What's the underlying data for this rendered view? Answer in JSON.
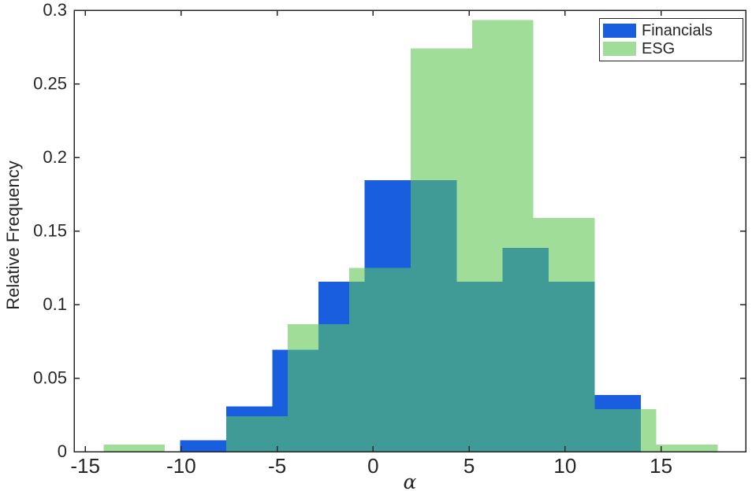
{
  "figure": {
    "background_color": "#ffffff",
    "axis_color": "#262626",
    "text_color": "#262626"
  },
  "legend": {
    "items": [
      {
        "label": "Financials",
        "color": "#1A5EE0"
      },
      {
        "label": "ESG",
        "color": "#A0DD99"
      }
    ]
  },
  "chart_data": {
    "type": "histogram",
    "title": "",
    "xlabel": "α",
    "ylabel": "Relative Frequency",
    "xlim": [
      -15.58,
      19.41
    ],
    "ylim": [
      0,
      0.3
    ],
    "x_tick_values": [
      -15,
      -10,
      -5,
      0,
      5,
      10,
      15
    ],
    "x_tick_labels": [
      "-15",
      "-10",
      "-5",
      "0",
      "5",
      "10",
      "15"
    ],
    "y_tick_values": [
      0,
      0.05,
      0.1,
      0.15,
      0.2,
      0.25,
      0.3
    ],
    "y_tick_labels": [
      "0",
      "0.05",
      "0.1",
      "0.15",
      "0.2",
      "0.25",
      "0.3"
    ],
    "grid": false,
    "legend_position": "top-right",
    "overlap_color": "#409A96",
    "series": [
      {
        "name": "Financials",
        "color": "#1A5EE0",
        "bin_edges": [
          -10.05,
          -7.65,
          -5.25,
          -2.85,
          -0.45,
          1.95,
          4.35,
          6.75,
          9.15,
          11.55,
          13.95
        ],
        "values": [
          0.0077,
          0.0308,
          0.0692,
          0.1154,
          0.1846,
          0.1846,
          0.1154,
          0.1385,
          0.1154,
          0.0385
        ]
      },
      {
        "name": "ESG",
        "color": "#A0DD99",
        "bin_edges": [
          -14.05,
          -10.85,
          -7.65,
          -4.45,
          -1.25,
          1.95,
          5.15,
          8.35,
          11.55,
          14.75,
          17.95
        ],
        "values": [
          0.0048,
          0,
          0.024,
          0.0865,
          0.125,
          0.274,
          0.2933,
          0.1587,
          0.0288,
          0.0048
        ]
      }
    ]
  }
}
